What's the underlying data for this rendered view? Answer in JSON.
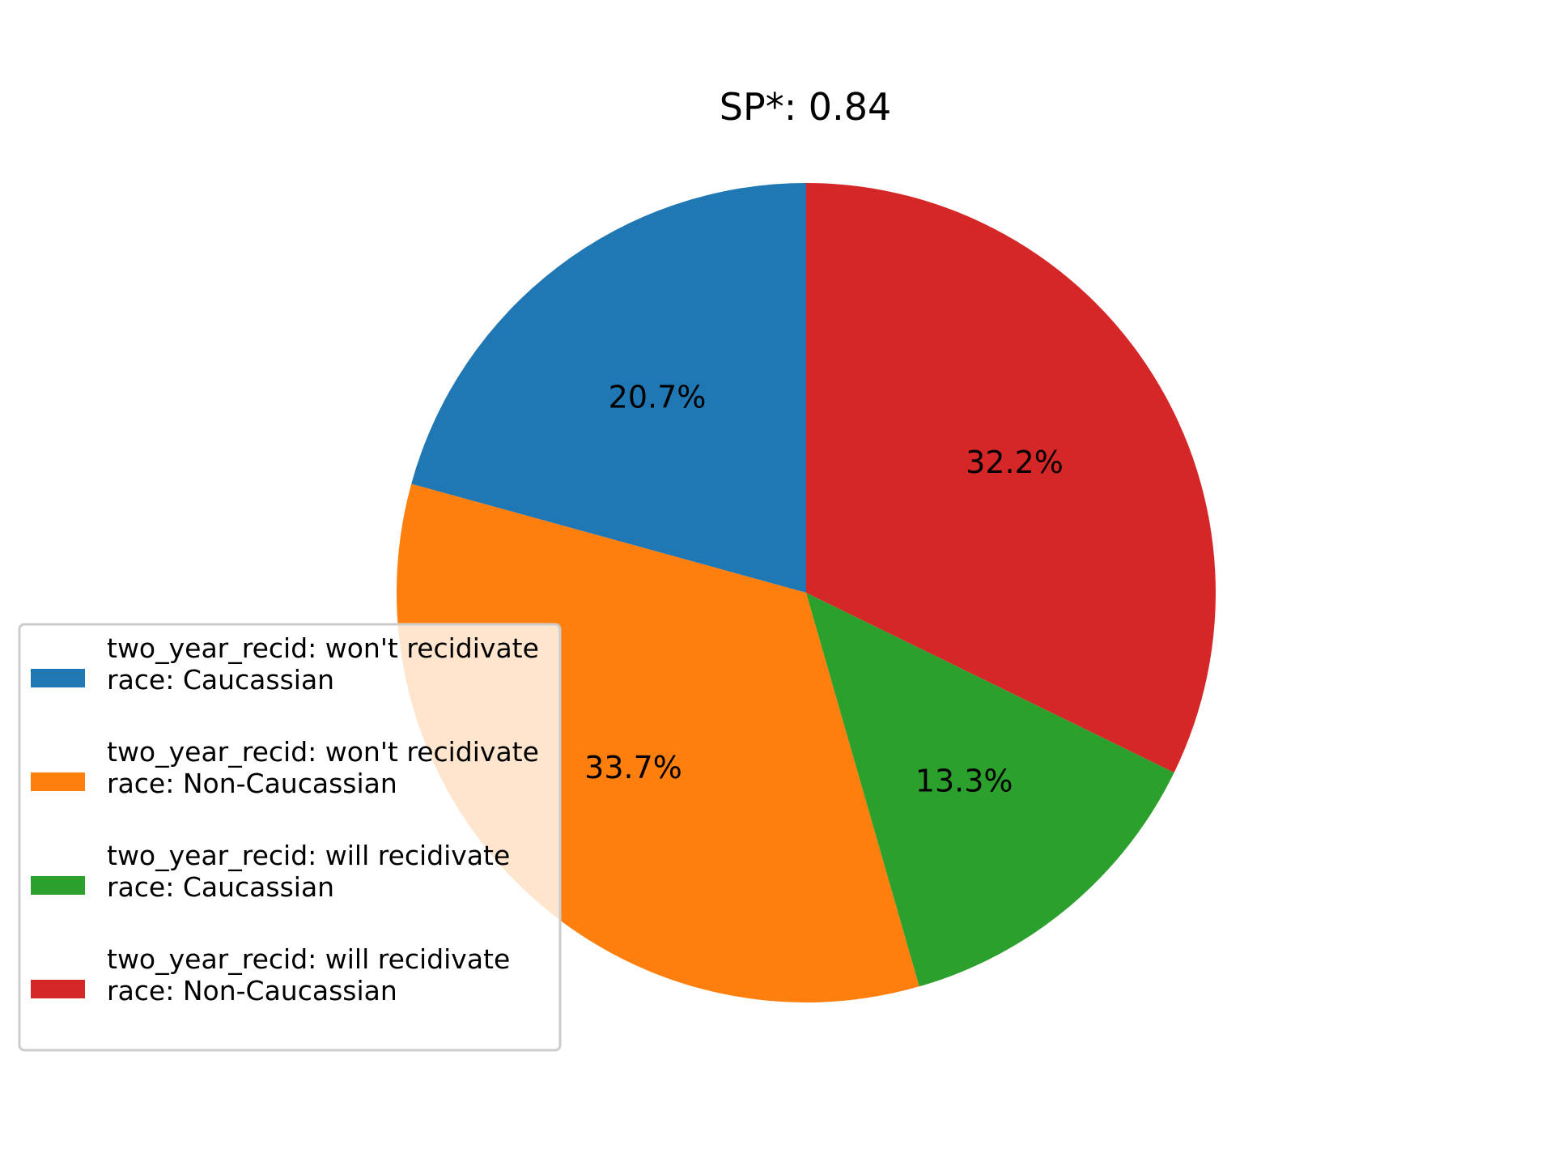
{
  "chart_data": {
    "type": "pie",
    "title": "SP*: 0.84",
    "start_angle_deg": 90,
    "direction": "counterclockwise",
    "slices": [
      {
        "label_line1": "two_year_recid: won't recidivate",
        "label_line2": "race: Caucassian",
        "value": 20.7,
        "pct_label": "20.7%",
        "color": "#1f77b4"
      },
      {
        "label_line1": "two_year_recid: won't recidivate",
        "label_line2": "race: Non-Caucassian",
        "value": 33.7,
        "pct_label": "33.7%",
        "color": "#ff7f0e"
      },
      {
        "label_line1": "two_year_recid: will recidivate",
        "label_line2": "race: Caucassian",
        "value": 13.3,
        "pct_label": "13.3%",
        "color": "#2ca02c"
      },
      {
        "label_line1": "two_year_recid: will recidivate",
        "label_line2": "race: Non-Caucassian",
        "value": 32.2,
        "pct_label": "32.2%",
        "color": "#d62728"
      }
    ],
    "legend_placement": "lower-left"
  }
}
